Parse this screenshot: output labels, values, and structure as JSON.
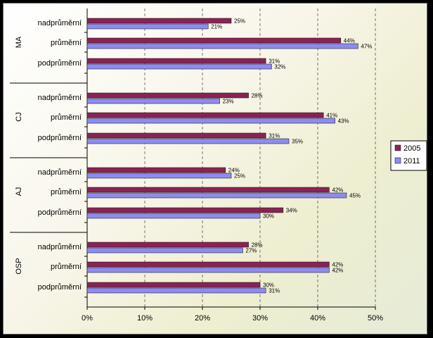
{
  "chart_data": {
    "type": "bar",
    "orientation": "horizontal",
    "groups": [
      {
        "name": "MA",
        "categories": [
          {
            "label": "nadprůměrní",
            "v2005": 25,
            "v2011": 21
          },
          {
            "label": "průměrní",
            "v2005": 44,
            "v2011": 47
          },
          {
            "label": "podprůměrní",
            "v2005": 31,
            "v2011": 32
          }
        ]
      },
      {
        "name": "CJ",
        "categories": [
          {
            "label": "nadprůměrní",
            "v2005": 28,
            "v2011": 23
          },
          {
            "label": "průměrní",
            "v2005": 41,
            "v2011": 43
          },
          {
            "label": "podprůměrní",
            "v2005": 31,
            "v2011": 35
          }
        ]
      },
      {
        "name": "AJ",
        "categories": [
          {
            "label": "nadprůměrní",
            "v2005": 24,
            "v2011": 25
          },
          {
            "label": "průměrní",
            "v2005": 42,
            "v2011": 45
          },
          {
            "label": "podprůměrní",
            "v2005": 34,
            "v2011": 30
          }
        ]
      },
      {
        "name": "OSP",
        "categories": [
          {
            "label": "nadprůměrní",
            "v2005": 28,
            "v2011": 27
          },
          {
            "label": "průměrní",
            "v2005": 42,
            "v2011": 42
          },
          {
            "label": "podprůměrní",
            "v2005": 30,
            "v2011": 31
          }
        ]
      }
    ],
    "series": [
      {
        "name": "2005",
        "key": "v2005",
        "color": "#8b2252"
      },
      {
        "name": "2011",
        "key": "v2011",
        "color": "#8c8cf0"
      }
    ],
    "x_ticks": [
      "0%",
      "10%",
      "20%",
      "30%",
      "40%",
      "50%"
    ],
    "xlim": [
      0,
      50
    ],
    "value_suffix": "%",
    "gridlines": "dashed vertical",
    "legend_position": "right"
  }
}
